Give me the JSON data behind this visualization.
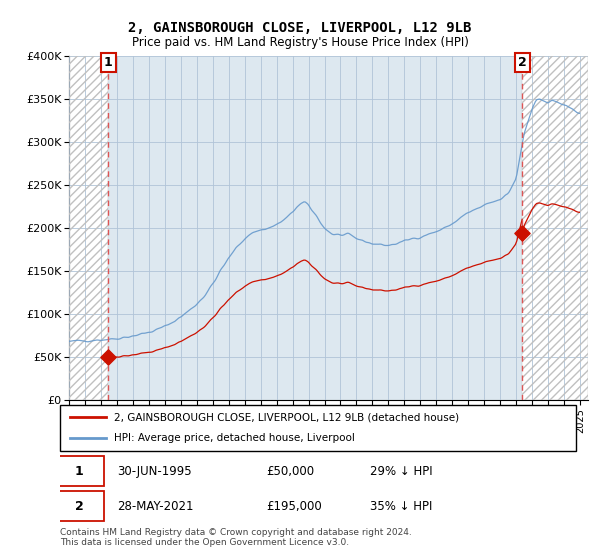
{
  "title": "2, GAINSBOROUGH CLOSE, LIVERPOOL, L12 9LB",
  "subtitle": "Price paid vs. HM Land Registry's House Price Index (HPI)",
  "sale1_date_num": 1995.458,
  "sale1_price": 50000,
  "sale1_label": "1",
  "sale2_date_num": 2021.375,
  "sale2_price": 195000,
  "sale2_label": "2",
  "legend_line1": "2, GAINSBOROUGH CLOSE, LIVERPOOL, L12 9LB (detached house)",
  "legend_line2": "HPI: Average price, detached house, Liverpool",
  "footer": "Contains HM Land Registry data © Crown copyright and database right 2024.\nThis data is licensed under the Open Government Licence v3.0.",
  "ylim": [
    0,
    400000
  ],
  "xlim_start": 1993.0,
  "xlim_end": 2025.5,
  "bg_color": "#dde8f0",
  "grid_color": "#b0c4d8",
  "red_line_color": "#cc1100",
  "blue_line_color": "#6699cc",
  "dashed_red": "#dd5555",
  "hatch_color": "#bbbbbb"
}
